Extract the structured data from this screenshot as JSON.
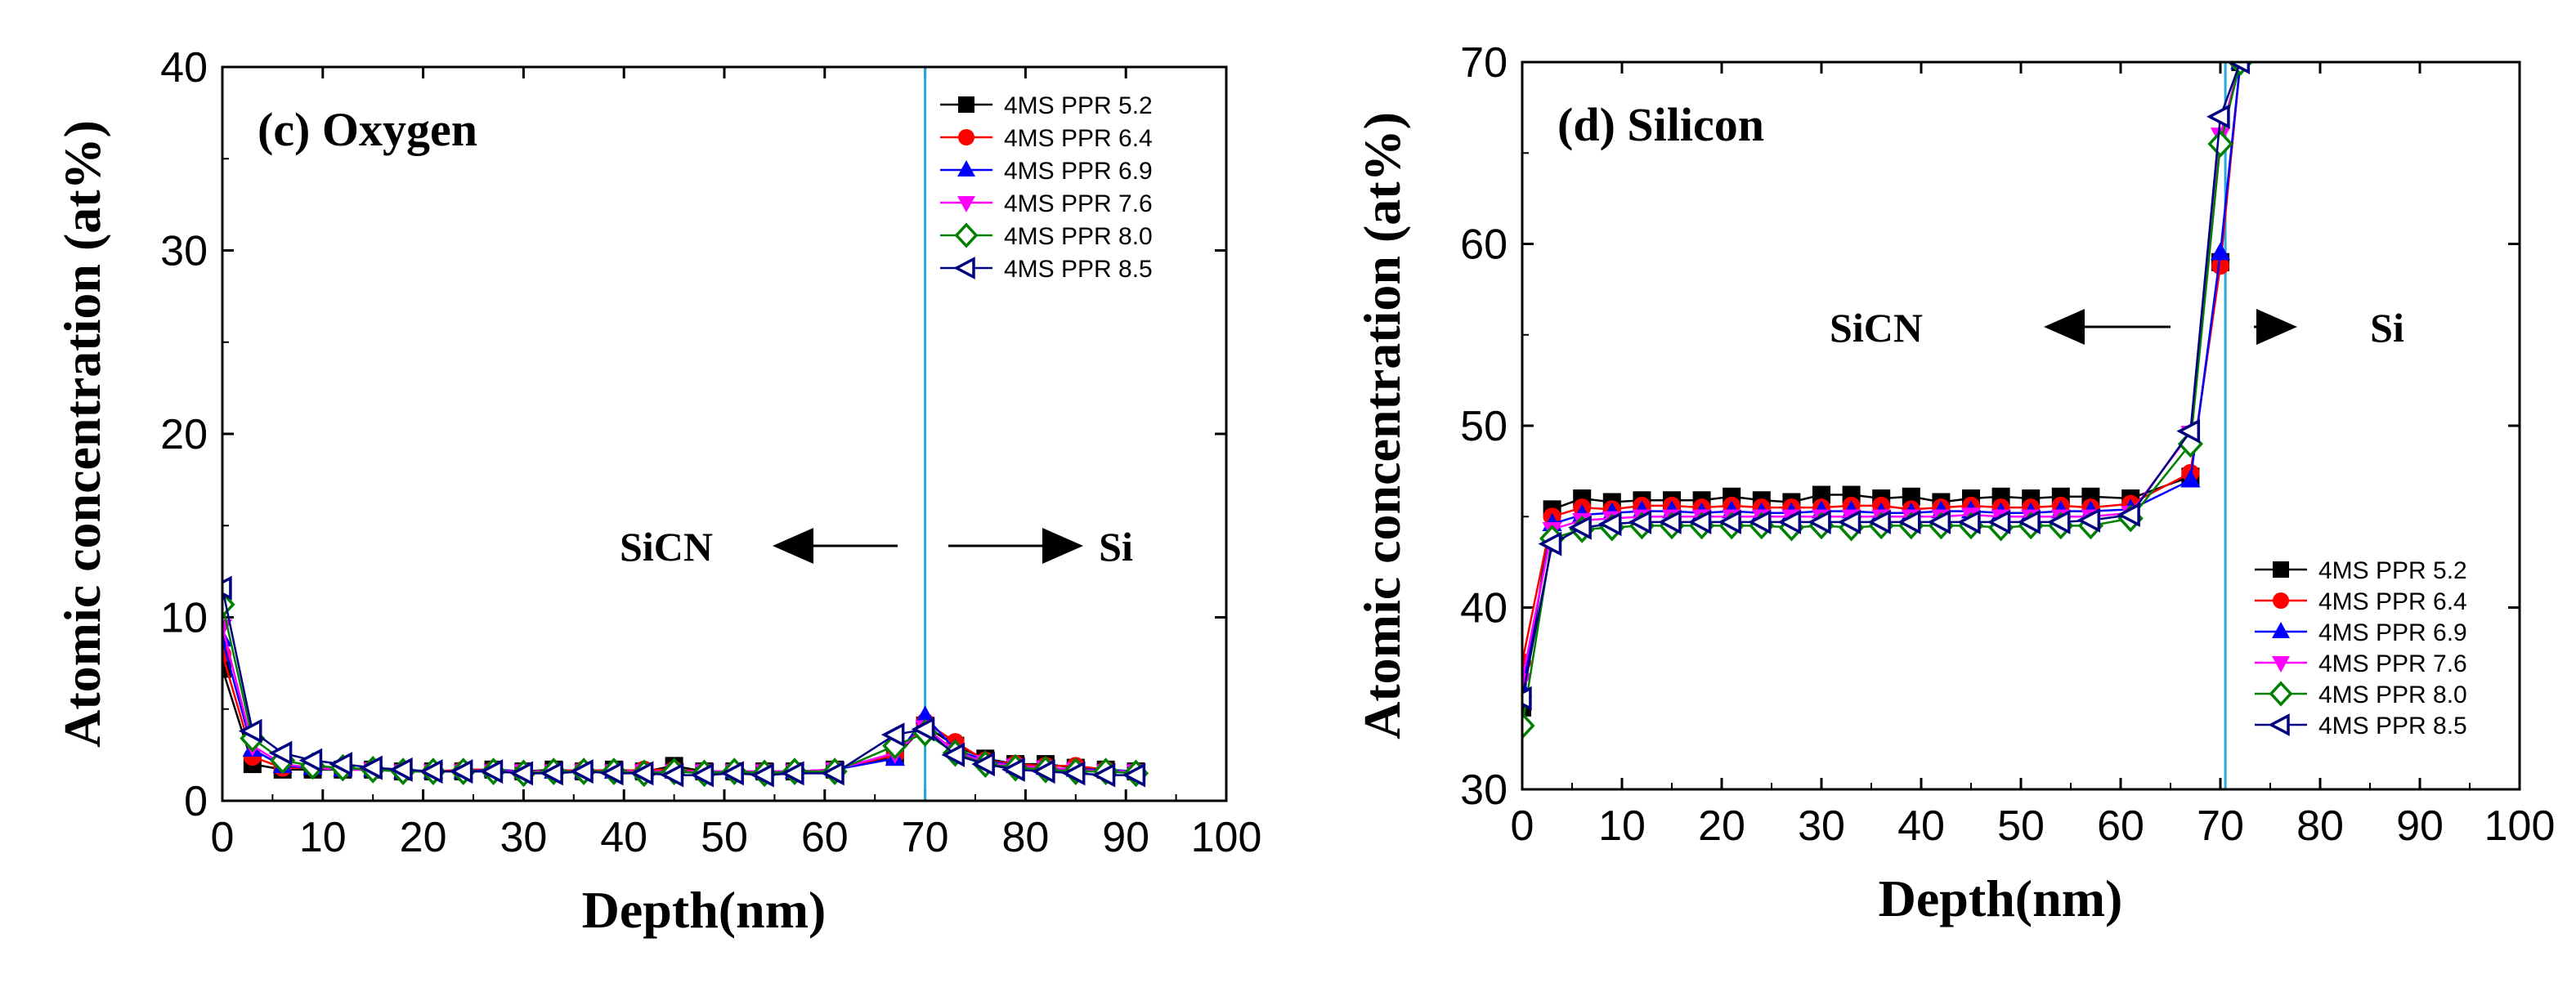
{
  "chart_data": [
    {
      "type": "line",
      "panel": "left",
      "title": "(c) Oxygen",
      "xlabel": "Depth(nm)",
      "ylabel": "Atomic concentration (at%)",
      "xlim": [
        0,
        100
      ],
      "ylim": [
        0,
        40
      ],
      "x_ticks": [
        0,
        10,
        20,
        30,
        40,
        50,
        60,
        70,
        80,
        90,
        100
      ],
      "y_ticks": [
        0,
        10,
        20,
        30,
        40
      ],
      "interface_x": 70,
      "region_labels": {
        "left": "SiCN",
        "right": "Si"
      },
      "legend_position": "top-right",
      "series": [
        {
          "name": "4MS PPR 5.2",
          "color": "#000000",
          "marker": "square",
          "x": [
            0,
            3,
            6,
            9,
            12,
            15,
            18,
            21,
            24,
            27,
            30,
            33,
            36,
            39,
            42,
            45,
            48,
            51,
            54,
            57,
            61,
            67,
            70,
            73,
            76,
            79,
            82,
            85,
            88,
            91
          ],
          "y": [
            7.2,
            2.0,
            1.7,
            1.7,
            1.7,
            1.7,
            1.6,
            1.6,
            1.6,
            1.7,
            1.6,
            1.7,
            1.6,
            1.7,
            1.6,
            1.9,
            1.6,
            1.6,
            1.6,
            1.6,
            1.7,
            2.4,
            4.1,
            3.0,
            2.3,
            2.0,
            2.0,
            1.8,
            1.7,
            1.6
          ]
        },
        {
          "name": "4MS PPR 6.4",
          "color": "#ff0000",
          "marker": "circle",
          "x": [
            0,
            3,
            6,
            9,
            12,
            15,
            18,
            21,
            24,
            27,
            30,
            33,
            36,
            39,
            42,
            45,
            48,
            51,
            54,
            57,
            61,
            67,
            70,
            73,
            76,
            79,
            82,
            85,
            88,
            91
          ],
          "y": [
            8.0,
            2.4,
            1.8,
            1.8,
            1.7,
            1.7,
            1.6,
            1.6,
            1.7,
            1.7,
            1.6,
            1.6,
            1.7,
            1.6,
            1.7,
            1.7,
            1.6,
            1.6,
            1.6,
            1.6,
            1.7,
            2.5,
            4.3,
            3.2,
            2.2,
            2.0,
            1.9,
            1.9,
            1.7,
            1.6
          ]
        },
        {
          "name": "4MS PPR 6.9",
          "color": "#0000ff",
          "marker": "triangle-up",
          "x": [
            0,
            3,
            6,
            9,
            12,
            15,
            18,
            21,
            24,
            27,
            30,
            33,
            36,
            39,
            42,
            45,
            48,
            51,
            54,
            57,
            61,
            67,
            70,
            73,
            76,
            79,
            82,
            85,
            88,
            91
          ],
          "y": [
            8.8,
            2.8,
            1.9,
            1.8,
            1.7,
            1.7,
            1.6,
            1.6,
            1.6,
            1.7,
            1.6,
            1.6,
            1.6,
            1.6,
            1.6,
            1.6,
            1.6,
            1.6,
            1.6,
            1.6,
            1.7,
            2.3,
            4.6,
            2.8,
            2.2,
            1.9,
            1.8,
            1.7,
            1.7,
            1.6
          ]
        },
        {
          "name": "4MS PPR 7.6",
          "color": "#ff00ff",
          "marker": "triangle-down",
          "x": [
            0,
            3,
            6,
            9,
            12,
            15,
            18,
            21,
            24,
            27,
            30,
            33,
            36,
            39,
            42,
            45,
            48,
            51,
            54,
            57,
            61,
            67,
            70,
            73,
            76,
            79,
            82,
            85,
            88,
            91
          ],
          "y": [
            9.5,
            3.0,
            2.0,
            1.8,
            1.7,
            1.7,
            1.6,
            1.6,
            1.6,
            1.6,
            1.6,
            1.6,
            1.6,
            1.6,
            1.6,
            1.6,
            1.6,
            1.6,
            1.6,
            1.6,
            1.7,
            2.6,
            4.0,
            2.7,
            2.1,
            1.9,
            1.8,
            1.7,
            1.6,
            1.6
          ]
        },
        {
          "name": "4MS PPR 8.0",
          "color": "#008000",
          "marker": "diamond-open",
          "x": [
            0,
            3,
            6,
            9,
            12,
            15,
            18,
            21,
            24,
            27,
            30,
            33,
            36,
            39,
            42,
            45,
            48,
            51,
            54,
            57,
            61,
            67,
            70,
            73,
            76,
            79,
            82,
            85,
            88,
            91
          ],
          "y": [
            10.7,
            3.4,
            2.2,
            1.9,
            1.8,
            1.7,
            1.6,
            1.6,
            1.6,
            1.6,
            1.5,
            1.6,
            1.6,
            1.6,
            1.5,
            1.6,
            1.5,
            1.6,
            1.5,
            1.6,
            1.6,
            3.0,
            3.7,
            2.6,
            2.0,
            1.8,
            1.7,
            1.6,
            1.6,
            1.5
          ]
        },
        {
          "name": "4MS PPR 8.5",
          "color": "#000080",
          "marker": "triangle-left-open",
          "x": [
            0,
            3,
            6,
            9,
            12,
            15,
            18,
            21,
            24,
            27,
            30,
            33,
            36,
            39,
            42,
            45,
            48,
            51,
            54,
            57,
            61,
            67,
            70,
            73,
            76,
            79,
            82,
            85,
            88,
            91
          ],
          "y": [
            11.6,
            3.8,
            2.6,
            2.2,
            2.0,
            1.8,
            1.7,
            1.6,
            1.6,
            1.6,
            1.5,
            1.5,
            1.6,
            1.5,
            1.5,
            1.4,
            1.4,
            1.5,
            1.4,
            1.5,
            1.5,
            3.6,
            3.9,
            2.5,
            2.0,
            1.7,
            1.6,
            1.5,
            1.4,
            1.4
          ]
        }
      ]
    },
    {
      "type": "line",
      "panel": "right",
      "title": "(d) Silicon",
      "xlabel": "Depth(nm)",
      "ylabel": "Atomic concentration (at%)",
      "xlim": [
        0,
        100
      ],
      "ylim": [
        30,
        70
      ],
      "x_ticks": [
        0,
        10,
        20,
        30,
        40,
        50,
        60,
        70,
        80,
        90,
        100
      ],
      "y_ticks": [
        30,
        40,
        50,
        60,
        70
      ],
      "interface_x": 70.5,
      "region_labels": {
        "left": "SiCN",
        "right": "Si"
      },
      "legend_position": "bottom-right",
      "series": [
        {
          "name": "4MS PPR 5.2",
          "color": "#000000",
          "marker": "square",
          "x": [
            0,
            3,
            6,
            9,
            12,
            15,
            18,
            21,
            24,
            27,
            30,
            33,
            36,
            39,
            42,
            45,
            48,
            51,
            54,
            57,
            61,
            67,
            70,
            72
          ],
          "y": [
            34.5,
            45.4,
            46.0,
            45.8,
            45.9,
            45.9,
            45.9,
            46.1,
            45.9,
            45.8,
            46.2,
            46.2,
            46.0,
            46.1,
            45.8,
            46.0,
            46.1,
            46.0,
            46.1,
            46.1,
            46.0,
            47.2,
            59.0,
            70.0
          ]
        },
        {
          "name": "4MS PPR 6.4",
          "color": "#ff0000",
          "marker": "circle",
          "x": [
            0,
            3,
            6,
            9,
            12,
            15,
            18,
            21,
            24,
            27,
            30,
            33,
            36,
            39,
            42,
            45,
            48,
            51,
            54,
            57,
            61,
            67,
            70,
            72
          ],
          "y": [
            37.0,
            45.0,
            45.5,
            45.4,
            45.6,
            45.6,
            45.5,
            45.6,
            45.5,
            45.5,
            45.5,
            45.6,
            45.6,
            45.4,
            45.5,
            45.6,
            45.5,
            45.5,
            45.6,
            45.5,
            45.7,
            47.4,
            58.8,
            70.0
          ]
        },
        {
          "name": "4MS PPR 6.9",
          "color": "#0000ff",
          "marker": "triangle-up",
          "x": [
            0,
            3,
            6,
            9,
            12,
            15,
            18,
            21,
            24,
            27,
            30,
            33,
            36,
            39,
            42,
            45,
            48,
            51,
            54,
            57,
            61,
            67,
            70,
            72
          ],
          "y": [
            35.5,
            44.6,
            45.1,
            45.2,
            45.3,
            45.3,
            45.2,
            45.3,
            45.2,
            45.2,
            45.3,
            45.3,
            45.2,
            45.2,
            45.3,
            45.3,
            45.2,
            45.2,
            45.3,
            45.3,
            45.4,
            47.0,
            59.5,
            70.0
          ]
        },
        {
          "name": "4MS PPR 7.6",
          "color": "#ff00ff",
          "marker": "triangle-down",
          "x": [
            0,
            3,
            6,
            9,
            12,
            15,
            18,
            21,
            24,
            27,
            30,
            33,
            36,
            39,
            42,
            45,
            48,
            51,
            54,
            57,
            61,
            67,
            70,
            72
          ],
          "y": [
            36.0,
            44.3,
            44.8,
            44.9,
            45.0,
            45.0,
            45.0,
            45.0,
            45.0,
            45.0,
            45.0,
            45.0,
            45.0,
            45.0,
            45.0,
            45.1,
            45.0,
            45.0,
            45.0,
            45.0,
            45.2,
            49.6,
            66.0,
            70.0
          ]
        },
        {
          "name": "4MS PPR 8.0",
          "color": "#008000",
          "marker": "diamond-open",
          "x": [
            0,
            3,
            6,
            9,
            12,
            15,
            18,
            21,
            24,
            27,
            30,
            33,
            36,
            39,
            42,
            45,
            48,
            51,
            54,
            57,
            61,
            67,
            70,
            72
          ],
          "y": [
            33.5,
            43.8,
            44.3,
            44.4,
            44.5,
            44.5,
            44.5,
            44.5,
            44.5,
            44.4,
            44.5,
            44.4,
            44.5,
            44.5,
            44.5,
            44.5,
            44.4,
            44.5,
            44.5,
            44.5,
            44.9,
            49.0,
            65.5,
            70.0
          ]
        },
        {
          "name": "4MS PPR 8.5",
          "color": "#000080",
          "marker": "triangle-left-open",
          "x": [
            0,
            3,
            6,
            9,
            12,
            15,
            18,
            21,
            24,
            27,
            30,
            33,
            36,
            39,
            42,
            45,
            48,
            51,
            54,
            57,
            61,
            67,
            70,
            72
          ],
          "y": [
            35.0,
            43.5,
            44.4,
            44.6,
            44.7,
            44.7,
            44.7,
            44.7,
            44.7,
            44.7,
            44.7,
            44.7,
            44.7,
            44.7,
            44.7,
            44.7,
            44.7,
            44.7,
            44.7,
            44.8,
            45.1,
            49.7,
            67.0,
            70.0
          ]
        }
      ]
    }
  ]
}
